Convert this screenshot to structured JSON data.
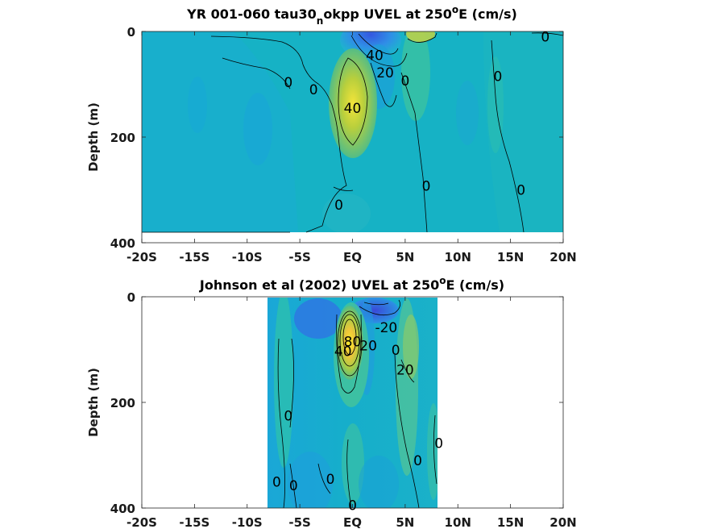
{
  "chart_data": [
    {
      "type": "heatmap",
      "title": "YR 001-060 tau30",
      "title_subscript": "n",
      "title_rest": "okpp UVEL at 250",
      "title_degree": "o",
      "title_end": "E (cm/s)",
      "xlabel": "",
      "ylabel": "Depth (m)",
      "x_ticks": [
        "-20S",
        "-15S",
        "-10S",
        "-5S",
        "EQ",
        "5N",
        "10N",
        "15N",
        "20N"
      ],
      "x_values": [
        -20,
        -15,
        -10,
        -5,
        0,
        5,
        10,
        15,
        20
      ],
      "y_ticks": [
        "0",
        "200",
        "400"
      ],
      "y_values": [
        0,
        200,
        400
      ],
      "xlim": [
        -20,
        20
      ],
      "ylim": [
        0,
        400
      ],
      "y_reversed": true,
      "data_extent": {
        "x": [
          -20,
          20
        ],
        "y": [
          0,
          380
        ]
      },
      "colormap": "parula",
      "contour_labels": [
        {
          "text": "0",
          "x": 18.3,
          "depth": 10
        },
        {
          "text": "40",
          "x": 2.1,
          "depth": 45
        },
        {
          "text": "20",
          "x": 3.1,
          "depth": 78
        },
        {
          "text": "0",
          "x": 5.0,
          "depth": 93
        },
        {
          "text": "0",
          "x": -3.7,
          "depth": 110
        },
        {
          "text": "0",
          "x": -6.1,
          "depth": 96
        },
        {
          "text": "0",
          "x": 13.8,
          "depth": 85
        },
        {
          "text": "40",
          "x": 0.0,
          "depth": 145
        },
        {
          "text": "0",
          "x": 7.0,
          "depth": 292
        },
        {
          "text": "0",
          "x": 16.0,
          "depth": 300
        },
        {
          "text": "0",
          "x": -1.3,
          "depth": 328
        }
      ]
    },
    {
      "type": "heatmap",
      "title": "Johnson et al (2002) UVEL at 250",
      "title_degree": "o",
      "title_end": "E (cm/s)",
      "xlabel": "",
      "ylabel": "Depth (m)",
      "x_ticks": [
        "-20S",
        "-15S",
        "-10S",
        "-5S",
        "EQ",
        "5N",
        "10N",
        "15N",
        "20N"
      ],
      "x_values": [
        -20,
        -15,
        -10,
        -5,
        0,
        5,
        10,
        15,
        20
      ],
      "y_ticks": [
        "0",
        "200",
        "400"
      ],
      "y_values": [
        0,
        200,
        400
      ],
      "xlim": [
        -20,
        20
      ],
      "ylim": [
        0,
        400
      ],
      "y_reversed": true,
      "data_extent": {
        "x": [
          -8,
          8.2
        ],
        "y": [
          0,
          400
        ]
      },
      "colormap": "parula",
      "contour_labels": [
        {
          "text": "80",
          "x": 0.0,
          "depth": 85
        },
        {
          "text": "40",
          "x": -0.9,
          "depth": 103
        },
        {
          "text": "-20",
          "x": 3.2,
          "depth": 58
        },
        {
          "text": "20",
          "x": 1.5,
          "depth": 92
        },
        {
          "text": "0",
          "x": 4.1,
          "depth": 101
        },
        {
          "text": "20",
          "x": 5.0,
          "depth": 138
        },
        {
          "text": "0",
          "x": -6.1,
          "depth": 225
        },
        {
          "text": "0",
          "x": 8.2,
          "depth": 277
        },
        {
          "text": "0",
          "x": 6.2,
          "depth": 310
        },
        {
          "text": "0",
          "x": -7.2,
          "depth": 350
        },
        {
          "text": "0",
          "x": -5.6,
          "depth": 357
        },
        {
          "text": "0",
          "x": -2.1,
          "depth": 345
        },
        {
          "text": "0",
          "x": 0.0,
          "depth": 395
        }
      ]
    }
  ]
}
